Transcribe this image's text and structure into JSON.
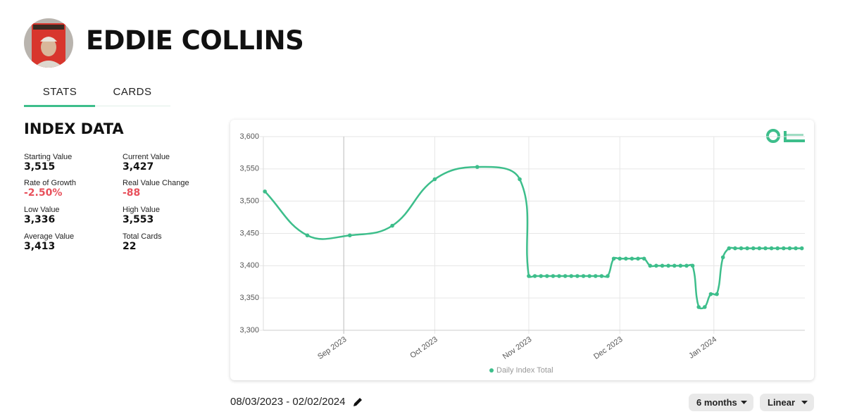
{
  "header": {
    "title": "EDDIE COLLINS"
  },
  "tabs": [
    "STATS",
    "CARDS"
  ],
  "section_title": "INDEX DATA",
  "stats": [
    {
      "label": "Starting Value",
      "value": "3,515"
    },
    {
      "label": "Current Value",
      "value": "3,427"
    },
    {
      "label": "Rate of Growth",
      "value": "-2.50%"
    },
    {
      "label": "Real Value Change",
      "value": "-88"
    },
    {
      "label": "Low Value",
      "value": "3,336"
    },
    {
      "label": "High Value",
      "value": "3,553"
    },
    {
      "label": "Average Value",
      "value": "3,413"
    },
    {
      "label": "Total Cards",
      "value": "22"
    }
  ],
  "chart_data": {
    "type": "line",
    "x": [
      3,
      17,
      31,
      45,
      59,
      73,
      87,
      90,
      92,
      94,
      96,
      98,
      100,
      102,
      104,
      106,
      108,
      110,
      112,
      114,
      116,
      118,
      120,
      122,
      124,
      126,
      128,
      130,
      132,
      134,
      136,
      138,
      140,
      142,
      144,
      146,
      148,
      150,
      152,
      154,
      156,
      158,
      160,
      162,
      164,
      166,
      168,
      170,
      172,
      174,
      176,
      178,
      180
    ],
    "series": [
      {
        "name": "Daily Index Total",
        "color": "#3dbe8b",
        "values": [
          3515,
          3447,
          3447,
          3462,
          3534,
          3553,
          3534,
          3384,
          3384,
          3384,
          3384,
          3384,
          3384,
          3384,
          3384,
          3384,
          3384,
          3384,
          3384,
          3384,
          3384,
          3411,
          3411,
          3411,
          3411,
          3411,
          3411,
          3400,
          3400,
          3400,
          3400,
          3400,
          3400,
          3400,
          3400,
          3336,
          3336,
          3356,
          3356,
          3413,
          3427,
          3427,
          3427,
          3427,
          3427,
          3427,
          3427,
          3427,
          3427,
          3427,
          3427,
          3427,
          3427
        ]
      }
    ],
    "xlim": [
      2.5,
      181
    ],
    "xticks": [
      {
        "value": 29,
        "label": "Sep 2023"
      },
      {
        "value": 59,
        "label": "Oct 2023"
      },
      {
        "value": 90,
        "label": "Nov 2023"
      },
      {
        "value": 120,
        "label": "Dec 2023"
      },
      {
        "value": 151,
        "label": "Jan 2024"
      }
    ],
    "ylim": [
      3300,
      3600
    ],
    "yticks": [
      {
        "value": 3300,
        "label": "3,300"
      },
      {
        "value": 3350,
        "label": "3,350"
      },
      {
        "value": 3400,
        "label": "3,400"
      },
      {
        "value": 3450,
        "label": "3,450"
      },
      {
        "value": 3500,
        "label": "3,500"
      },
      {
        "value": 3550,
        "label": "3,550"
      },
      {
        "value": 3600,
        "label": "3,600"
      }
    ],
    "grid": true,
    "legend": "bottom"
  },
  "date_range": "08/03/2023 - 02/02/2024",
  "controls": [
    "6 months",
    "Linear"
  ]
}
